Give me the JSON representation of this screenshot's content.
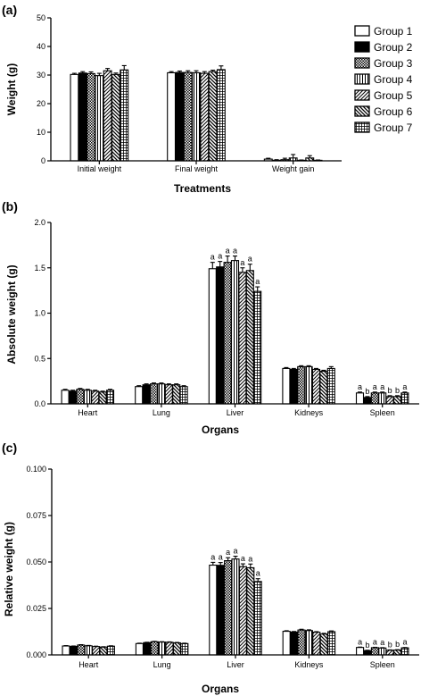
{
  "colors": {
    "ink": "#000000",
    "paper": "#ffffff"
  },
  "legend": {
    "placement": "right",
    "entries": [
      {
        "name": "Group 1",
        "pattern": "white"
      },
      {
        "name": "Group 2",
        "pattern": "black"
      },
      {
        "name": "Group 3",
        "pattern": "checker"
      },
      {
        "name": "Group 4",
        "pattern": "vertical-lines"
      },
      {
        "name": "Group 5",
        "pattern": "diagonal-up"
      },
      {
        "name": "Group 6",
        "pattern": "diagonal-down"
      },
      {
        "name": "Group 7",
        "pattern": "grid"
      }
    ]
  },
  "chart_data": [
    {
      "panel": "(a)",
      "type": "bar",
      "xlabel": "Treatments",
      "ylabel": "Weight (g)",
      "ylim": [
        0,
        50
      ],
      "yticks": [
        "0",
        "10",
        "20",
        "30",
        "40",
        "50"
      ],
      "categories": [
        "Initial weight",
        "Final weight",
        "Weight gain"
      ],
      "series": [
        {
          "name": "Group 1",
          "values": [
            30.2,
            30.8,
            0.6
          ],
          "errors": [
            0.4,
            0.4,
            0.3
          ]
        },
        {
          "name": "Group 2",
          "values": [
            30.7,
            30.9,
            0.2
          ],
          "errors": [
            0.5,
            0.5,
            0.2
          ]
        },
        {
          "name": "Group 3",
          "values": [
            30.5,
            30.9,
            0.4
          ],
          "errors": [
            0.6,
            0.6,
            0.5
          ]
        },
        {
          "name": "Group 4",
          "values": [
            29.8,
            30.8,
            1.0
          ],
          "errors": [
            0.8,
            0.7,
            1.2
          ]
        },
        {
          "name": "Group 5",
          "values": [
            31.5,
            30.6,
            0.1
          ],
          "errors": [
            0.8,
            0.6,
            0.2
          ]
        },
        {
          "name": "Group 6",
          "values": [
            30.2,
            31.2,
            1.0
          ],
          "errors": [
            0.5,
            0.5,
            0.8
          ]
        },
        {
          "name": "Group 7",
          "values": [
            31.8,
            31.9,
            0.1
          ],
          "errors": [
            1.5,
            1.3,
            0.2
          ]
        }
      ]
    },
    {
      "panel": "(b)",
      "type": "bar",
      "xlabel": "Organs",
      "ylabel": "Absolute weight (g)",
      "ylim": [
        0,
        2.0
      ],
      "yticks": [
        "0.0",
        "0.5",
        "1.0",
        "1.5",
        "2.0"
      ],
      "categories": [
        "Heart",
        "Lung",
        "Liver",
        "Kidneys",
        "Spleen"
      ],
      "series": [
        {
          "name": "Group 1",
          "values": [
            0.15,
            0.19,
            1.49,
            0.39,
            0.12
          ],
          "errors": [
            0.01,
            0.01,
            0.07,
            0.01,
            0.01
          ]
        },
        {
          "name": "Group 2",
          "values": [
            0.14,
            0.21,
            1.51,
            0.38,
            0.07
          ],
          "errors": [
            0.01,
            0.01,
            0.06,
            0.01,
            0.01
          ]
        },
        {
          "name": "Group 3",
          "values": [
            0.16,
            0.22,
            1.56,
            0.41,
            0.12
          ],
          "errors": [
            0.01,
            0.01,
            0.07,
            0.01,
            0.01
          ]
        },
        {
          "name": "Group 4",
          "values": [
            0.15,
            0.22,
            1.58,
            0.41,
            0.12
          ],
          "errors": [
            0.01,
            0.01,
            0.05,
            0.01,
            0.01
          ]
        },
        {
          "name": "Group 5",
          "values": [
            0.14,
            0.21,
            1.45,
            0.38,
            0.08
          ],
          "errors": [
            0.01,
            0.01,
            0.05,
            0.01,
            0.01
          ]
        },
        {
          "name": "Group 6",
          "values": [
            0.13,
            0.21,
            1.47,
            0.36,
            0.08
          ],
          "errors": [
            0.01,
            0.01,
            0.07,
            0.01,
            0.01
          ]
        },
        {
          "name": "Group 7",
          "values": [
            0.15,
            0.19,
            1.24,
            0.39,
            0.12
          ],
          "errors": [
            0.01,
            0.01,
            0.05,
            0.02,
            0.01
          ]
        }
      ],
      "annotations": [
        {
          "category": "Liver",
          "letters": [
            "a",
            "a",
            "a",
            "a",
            "a",
            "a",
            "a"
          ]
        },
        {
          "category": "Spleen",
          "letters": [
            "a",
            "b",
            "a",
            "a",
            "b",
            "b",
            "a"
          ]
        }
      ]
    },
    {
      "panel": "(c)",
      "type": "bar",
      "xlabel": "Organs",
      "ylabel": "Relative weight (g)",
      "ylim": [
        0,
        0.1
      ],
      "yticks": [
        "0.000",
        "0.025",
        "0.050",
        "0.075",
        "0.100"
      ],
      "categories": [
        "Heart",
        "Lung",
        "Liver",
        "Kidneys",
        "Spleen"
      ],
      "series": [
        {
          "name": "Group 1",
          "values": [
            0.0048,
            0.0061,
            0.0483,
            0.0127,
            0.004
          ],
          "errors": [
            0.0002,
            0.0002,
            0.0015,
            0.0003,
            0.0002
          ]
        },
        {
          "name": "Group 2",
          "values": [
            0.0046,
            0.0066,
            0.0482,
            0.0123,
            0.0023
          ],
          "errors": [
            0.0002,
            0.0002,
            0.0015,
            0.0003,
            0.0002
          ]
        },
        {
          "name": "Group 3",
          "values": [
            0.0053,
            0.0071,
            0.0507,
            0.0134,
            0.0039
          ],
          "errors": [
            0.0002,
            0.0002,
            0.0016,
            0.0004,
            0.0002
          ]
        },
        {
          "name": "Group 4",
          "values": [
            0.0049,
            0.0069,
            0.0516,
            0.0131,
            0.0037
          ],
          "errors": [
            0.0002,
            0.0002,
            0.0015,
            0.0004,
            0.0002
          ]
        },
        {
          "name": "Group 5",
          "values": [
            0.0045,
            0.0068,
            0.0475,
            0.0122,
            0.0025
          ],
          "errors": [
            0.0002,
            0.0002,
            0.0015,
            0.0003,
            0.0002
          ]
        },
        {
          "name": "Group 6",
          "values": [
            0.0042,
            0.0065,
            0.0469,
            0.0112,
            0.0026
          ],
          "errors": [
            0.0002,
            0.0002,
            0.002,
            0.0004,
            0.0002
          ]
        },
        {
          "name": "Group 7",
          "values": [
            0.0047,
            0.0061,
            0.0395,
            0.0125,
            0.0038
          ],
          "errors": [
            0.0002,
            0.0002,
            0.0015,
            0.0004,
            0.0002
          ]
        }
      ],
      "annotations": [
        {
          "category": "Liver",
          "letters": [
            "a",
            "a",
            "a",
            "a",
            "a",
            "a",
            "a"
          ]
        },
        {
          "category": "Spleen",
          "letters": [
            "a",
            "b",
            "a",
            "a",
            "b",
            "b",
            "a"
          ]
        }
      ]
    }
  ]
}
